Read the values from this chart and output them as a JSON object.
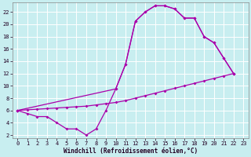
{
  "xlabel": "Windchill (Refroidissement éolien,°C)",
  "bg_color": "#c8eef0",
  "grid_color": "#ffffff",
  "line_color": "#aa00aa",
  "xlim": [
    -0.5,
    23.5
  ],
  "ylim": [
    1.5,
    23.5
  ],
  "xticks": [
    0,
    1,
    2,
    3,
    4,
    5,
    6,
    7,
    8,
    9,
    10,
    11,
    12,
    13,
    14,
    15,
    16,
    17,
    18,
    19,
    20,
    21,
    22,
    23
  ],
  "yticks": [
    2,
    4,
    6,
    8,
    10,
    12,
    14,
    16,
    18,
    20,
    22
  ],
  "line1_x": [
    0,
    1,
    2,
    3,
    4,
    5,
    6,
    7,
    8,
    9,
    10,
    11,
    12,
    13,
    14,
    15,
    16,
    17,
    18,
    19,
    20,
    21,
    22
  ],
  "line1_y": [
    6,
    5.5,
    5,
    5,
    4,
    3,
    3,
    2,
    3,
    6,
    9.5,
    13.5,
    20.5,
    22,
    23,
    23,
    22.5,
    21,
    21,
    18,
    17,
    14.5,
    12
  ],
  "line2_x": [
    0,
    1,
    2,
    3,
    4,
    5,
    6,
    7,
    8,
    9,
    10,
    11,
    12,
    13,
    14,
    15,
    16,
    17,
    18,
    19,
    20,
    21,
    22
  ],
  "line2_y": [
    6,
    6.1,
    6.2,
    6.3,
    6.4,
    6.5,
    6.6,
    6.7,
    6.9,
    7.1,
    7.3,
    7.6,
    8.0,
    8.4,
    8.8,
    9.2,
    9.6,
    10.0,
    10.4,
    10.8,
    11.2,
    11.6,
    12
  ],
  "line3_x": [
    0,
    10,
    11,
    12,
    13,
    14,
    15,
    16,
    17,
    18,
    19,
    20,
    21,
    22
  ],
  "line3_y": [
    6,
    9.5,
    13.5,
    20.5,
    22,
    23,
    23,
    22.5,
    21,
    21,
    18,
    17,
    14.5,
    12
  ]
}
